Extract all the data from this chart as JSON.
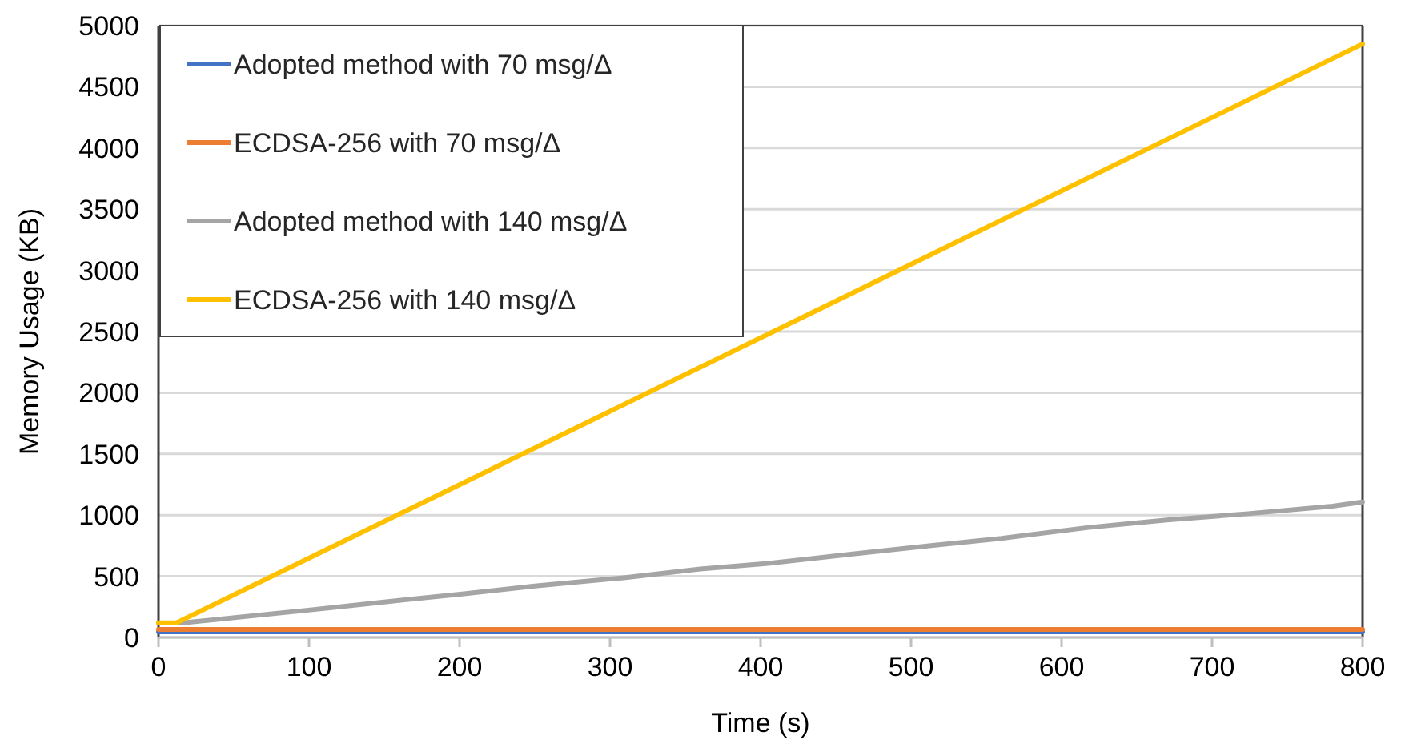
{
  "chart_data": {
    "type": "line",
    "xlabel": "Time (s)",
    "ylabel": "Memory Usage (KB)",
    "xlim": [
      0,
      800
    ],
    "ylim": [
      0,
      5000
    ],
    "xticks": [
      0,
      100,
      200,
      300,
      400,
      500,
      600,
      700,
      800
    ],
    "yticks": [
      0,
      500,
      1000,
      1500,
      2000,
      2500,
      3000,
      3500,
      4000,
      4500,
      5000
    ],
    "grid": "y",
    "legend": "top left",
    "marker": "none",
    "line_style": "solid",
    "series": [
      {
        "name": "Adopted method with 70 msg/Δ",
        "color": "#4472c4",
        "x": [
          0,
          800
        ],
        "values": [
          45,
          45
        ]
      },
      {
        "name": "ECDSA-256 with 70 msg/Δ",
        "color": "#ed7d31",
        "x": [
          0,
          800
        ],
        "values": [
          65,
          65
        ]
      },
      {
        "name": "Adopted method with 140 msg/Δ",
        "color": "#a5a5a5",
        "x": [
          0,
          15,
          97,
          150,
          203,
          250,
          309,
          360,
          405,
          460,
          512,
          560,
          618,
          670,
          724,
          780,
          800
        ],
        "values": [
          118,
          118,
          220,
          290,
          357,
          420,
          488,
          560,
          606,
          680,
          750,
          810,
          899,
          960,
          1012,
          1073,
          1108
        ]
      },
      {
        "name": "ECDSA-256 with 140 msg/Δ",
        "color": "#ffc000",
        "x": [
          0,
          12,
          800
        ],
        "values": [
          120,
          120,
          4850
        ]
      }
    ]
  }
}
